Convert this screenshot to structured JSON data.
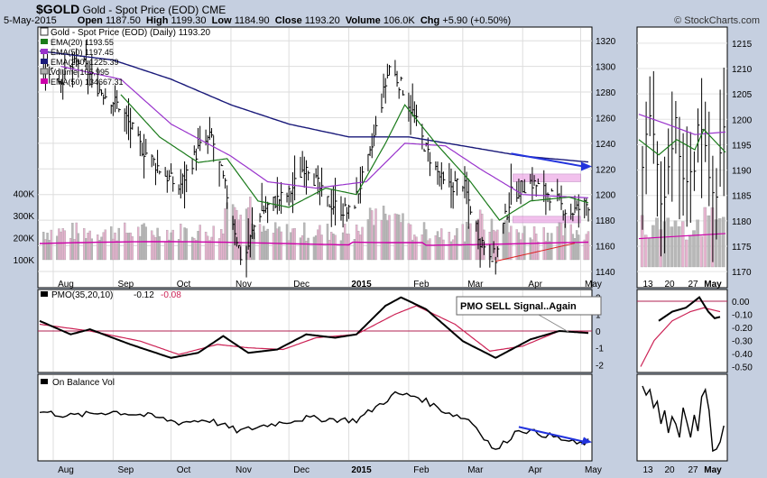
{
  "header": {
    "symbol": "$GOLD",
    "name": "Gold - Spot Price (EOD)",
    "exchange": "CME",
    "date": "5-May-2015",
    "open_label": "Open",
    "open": "1187.50",
    "high_label": "High",
    "high": "1199.30",
    "low_label": "Low",
    "low": "1184.90",
    "close_label": "Close",
    "close": "1193.20",
    "volume_label": "Volume",
    "volume": "106.0K",
    "chg_label": "Chg",
    "chg": "+5.90 (+0.50%)",
    "credit": "© StockCharts.com"
  },
  "legend": {
    "title": "Gold - Spot Price (EOD) (Daily) 1193.20",
    "ema20": "EMA(20) 1193.55",
    "ema50": "EMA(50) 1197.45",
    "ema200": "EMA(200) 1225.39",
    "volume": "Volume 105,995",
    "vol_ema": "EMA(50) 134667.31"
  },
  "pmo_legend": {
    "label": "PMO(35,20,10)",
    "v1": "-0.12",
    "v2": "-0.08"
  },
  "obv_legend": "On Balance Vol",
  "annotation": "PMO SELL Signal..Again",
  "colors": {
    "ema20": "#1a7a1a",
    "ema50": "#9933cc",
    "ema200": "#1a1a7a",
    "vol_ema": "#cc00aa",
    "arrow": "#2233dd",
    "signal": "#cc2255",
    "zone": "#e890e0"
  },
  "chart_data": [
    {
      "type": "ohlc",
      "title": "Gold - Spot Price (EOD) (Daily)",
      "x_labels": [
        "Aug",
        "Sep",
        "Oct",
        "Nov",
        "Dec",
        "2015",
        "Feb",
        "Mar",
        "Apr",
        "May"
      ],
      "y_ticks": [
        1140,
        1160,
        1180,
        1200,
        1220,
        1240,
        1260,
        1280,
        1300,
        1320
      ],
      "ylim": [
        1128,
        1330
      ],
      "volume_ticks": [
        "100K",
        "200K",
        "300K",
        "400K"
      ],
      "close_waypoints": [
        {
          "x": "Jul 25",
          "y": 1305
        },
        {
          "x": "Aug 5",
          "y": 1290
        },
        {
          "x": "Aug 15",
          "y": 1305
        },
        {
          "x": "Aug 25",
          "y": 1282
        },
        {
          "x": "Sep 5",
          "y": 1268
        },
        {
          "x": "Sep 15",
          "y": 1238
        },
        {
          "x": "Sep 25",
          "y": 1220
        },
        {
          "x": "Oct 5",
          "y": 1205
        },
        {
          "x": "Oct 15",
          "y": 1235
        },
        {
          "x": "Oct 22",
          "y": 1245
        },
        {
          "x": "Oct 30",
          "y": 1200
        },
        {
          "x": "Nov 7",
          "y": 1145
        },
        {
          "x": "Nov 15",
          "y": 1185
        },
        {
          "x": "Nov 24",
          "y": 1195
        },
        {
          "x": "Dec 1",
          "y": 1200
        },
        {
          "x": "Dec 10",
          "y": 1225
        },
        {
          "x": "Dec 20",
          "y": 1195
        },
        {
          "x": "Jan 2",
          "y": 1185
        },
        {
          "x": "Jan 12",
          "y": 1230
        },
        {
          "x": "Jan 22",
          "y": 1300
        },
        {
          "x": "Jan 30",
          "y": 1280
        },
        {
          "x": "Feb 10",
          "y": 1235
        },
        {
          "x": "Feb 20",
          "y": 1205
        },
        {
          "x": "Mar 1",
          "y": 1210
        },
        {
          "x": "Mar 10",
          "y": 1165
        },
        {
          "x": "Mar 18",
          "y": 1150
        },
        {
          "x": "Mar 26",
          "y": 1200
        },
        {
          "x": "Apr 5",
          "y": 1210
        },
        {
          "x": "Apr 15",
          "y": 1200
        },
        {
          "x": "Apr 25",
          "y": 1185
        },
        {
          "x": "May 5",
          "y": 1193
        }
      ],
      "ema20_waypoints": [
        {
          "x": "Sep 5",
          "y": 1278
        },
        {
          "x": "Sep 25",
          "y": 1245
        },
        {
          "x": "Oct 15",
          "y": 1225
        },
        {
          "x": "Oct 30",
          "y": 1228
        },
        {
          "x": "Nov 15",
          "y": 1195
        },
        {
          "x": "Dec 1",
          "y": 1190
        },
        {
          "x": "Dec 20",
          "y": 1205
        },
        {
          "x": "Jan 5",
          "y": 1200
        },
        {
          "x": "Jan 20",
          "y": 1240
        },
        {
          "x": "Jan 30",
          "y": 1270
        },
        {
          "x": "Feb 15",
          "y": 1240
        },
        {
          "x": "Mar 5",
          "y": 1210
        },
        {
          "x": "Mar 20",
          "y": 1180
        },
        {
          "x": "Apr 5",
          "y": 1195
        },
        {
          "x": "Apr 25",
          "y": 1198
        },
        {
          "x": "May 5",
          "y": 1193.55
        }
      ],
      "ema50_waypoints": [
        {
          "x": "Aug 5",
          "y": 1300
        },
        {
          "x": "Sep 5",
          "y": 1290
        },
        {
          "x": "Oct 1",
          "y": 1255
        },
        {
          "x": "Nov 1",
          "y": 1230
        },
        {
          "x": "Nov 20",
          "y": 1210
        },
        {
          "x": "Dec 15",
          "y": 1205
        },
        {
          "x": "Jan 10",
          "y": 1210
        },
        {
          "x": "Jan 30",
          "y": 1240
        },
        {
          "x": "Feb 20",
          "y": 1238
        },
        {
          "x": "Mar 10",
          "y": 1220
        },
        {
          "x": "Apr 1",
          "y": 1200
        },
        {
          "x": "May 5",
          "y": 1197.45
        }
      ],
      "ema200_waypoints": [
        {
          "x": "Jul 25",
          "y": 1312
        },
        {
          "x": "Sep 1",
          "y": 1305
        },
        {
          "x": "Oct 1",
          "y": 1290
        },
        {
          "x": "Nov 1",
          "y": 1270
        },
        {
          "x": "Dec 1",
          "y": 1255
        },
        {
          "x": "Jan 1",
          "y": 1245
        },
        {
          "x": "Feb 1",
          "y": 1245
        },
        {
          "x": "Mar 1",
          "y": 1238
        },
        {
          "x": "Apr 1",
          "y": 1230
        },
        {
          "x": "May 5",
          "y": 1225.39
        }
      ],
      "annotations": {
        "arrow_start": {
          "x": "Mar 26",
          "y": 1232
        },
        "arrow_end": {
          "x": "May 5",
          "y": 1222
        },
        "resistance_zone": [
          1210,
          1216
        ],
        "support_zone": [
          1178,
          1183
        ],
        "rising_bottoms": [
          {
            "x": "Mar 18",
            "y": 1148
          },
          {
            "x": "Apr 28",
            "y": 1162
          }
        ]
      }
    },
    {
      "type": "line",
      "name": "PMO(35,20,10)",
      "y_ticks": [
        -2,
        -1,
        0,
        1,
        2
      ],
      "ylim": [
        -2.2,
        2.2
      ],
      "pmo_waypoints": [
        {
          "x": "Jul 25",
          "y": 0.6
        },
        {
          "x": "Aug 10",
          "y": -0.2
        },
        {
          "x": "Aug 20",
          "y": 0.1
        },
        {
          "x": "Sep 10",
          "y": -0.8
        },
        {
          "x": "Oct 1",
          "y": -1.6
        },
        {
          "x": "Oct 15",
          "y": -1.3
        },
        {
          "x": "Oct 28",
          "y": -0.3
        },
        {
          "x": "Nov 10",
          "y": -1.3
        },
        {
          "x": "Nov 25",
          "y": -1.1
        },
        {
          "x": "Dec 10",
          "y": -0.2
        },
        {
          "x": "Dec 25",
          "y": -0.4
        },
        {
          "x": "Jan 5",
          "y": -0.2
        },
        {
          "x": "Jan 20",
          "y": 1.5
        },
        {
          "x": "Jan 28",
          "y": 2.0
        },
        {
          "x": "Feb 10",
          "y": 1.3
        },
        {
          "x": "Mar 1",
          "y": -0.6
        },
        {
          "x": "Mar 18",
          "y": -1.6
        },
        {
          "x": "Apr 5",
          "y": -0.5
        },
        {
          "x": "Apr 20",
          "y": 0.0
        },
        {
          "x": "May 5",
          "y": -0.12
        }
      ],
      "signal_waypoints": [
        {
          "x": "Jul 25",
          "y": 0.4
        },
        {
          "x": "Aug 20",
          "y": 0.0
        },
        {
          "x": "Sep 15",
          "y": -0.6
        },
        {
          "x": "Oct 5",
          "y": -1.4
        },
        {
          "x": "Oct 25",
          "y": -0.8
        },
        {
          "x": "Nov 10",
          "y": -1.0
        },
        {
          "x": "Nov 28",
          "y": -1.1
        },
        {
          "x": "Dec 15",
          "y": -0.4
        },
        {
          "x": "Jan 5",
          "y": -0.2
        },
        {
          "x": "Jan 25",
          "y": 1.0
        },
        {
          "x": "Feb 5",
          "y": 1.5
        },
        {
          "x": "Feb 25",
          "y": 0.4
        },
        {
          "x": "Mar 15",
          "y": -1.2
        },
        {
          "x": "Apr 1",
          "y": -0.9
        },
        {
          "x": "Apr 20",
          "y": 0.0
        },
        {
          "x": "May 5",
          "y": -0.08
        }
      ]
    },
    {
      "type": "line",
      "name": "On Balance Vol",
      "obv_waypoints": [
        {
          "x": "Jul 25",
          "y": 0.5
        },
        {
          "x": "Aug 10",
          "y": 0.4
        },
        {
          "x": "Sep 1",
          "y": 0.5
        },
        {
          "x": "Sep 20",
          "y": 0.4
        },
        {
          "x": "Oct 5",
          "y": 0.25
        },
        {
          "x": "Oct 20",
          "y": 0.32
        },
        {
          "x": "Nov 5",
          "y": 0.05
        },
        {
          "x": "Nov 20",
          "y": 0.2
        },
        {
          "x": "Dec 10",
          "y": 0.35
        },
        {
          "x": "Jan 5",
          "y": 0.3
        },
        {
          "x": "Jan 25",
          "y": 0.9
        },
        {
          "x": "Feb 5",
          "y": 0.85
        },
        {
          "x": "Feb 20",
          "y": 0.5
        },
        {
          "x": "Mar 5",
          "y": 0.3
        },
        {
          "x": "Mar 18",
          "y": -0.4
        },
        {
          "x": "Mar 30",
          "y": 0.1
        },
        {
          "x": "Apr 15",
          "y": -0.05
        },
        {
          "x": "Apr 30",
          "y": -0.25
        },
        {
          "x": "May 5",
          "y": -0.18
        }
      ]
    },
    {
      "type": "ohlc",
      "name": "zoom panel",
      "x_labels": [
        "13",
        "20",
        "27",
        "May"
      ],
      "y_ticks": [
        1170,
        1175,
        1180,
        1185,
        1190,
        1195,
        1200,
        1205,
        1210,
        1215
      ],
      "ylim": [
        1167,
        1218
      ],
      "pmo_ticks": [
        "0.00",
        "-0.10",
        "-0.20",
        "-0.30",
        "-0.40",
        "-0.50"
      ]
    }
  ]
}
